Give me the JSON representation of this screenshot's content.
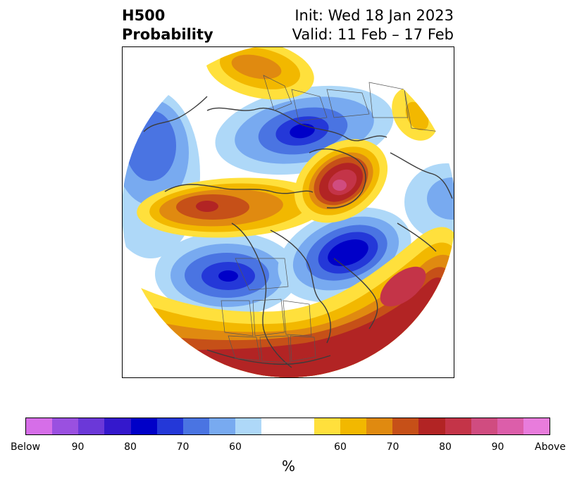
{
  "header": {
    "title_line1": "H500",
    "title_line2": "Probability",
    "init_text": "Init: Wed 18 Jan 2023",
    "valid_text": "Valid: 11 Feb – 17 Feb"
  },
  "map": {
    "projection": "north-polar-stereographic",
    "features": [
      "coastlines",
      "country-borders",
      "us-state-borders"
    ],
    "anomalies": [
      {
        "id": "west-canada-low",
        "sign": "below",
        "peak_pct": 80
      },
      {
        "id": "greenland-low",
        "sign": "below",
        "peak_pct": 80
      },
      {
        "id": "siberia-low",
        "sign": "below",
        "peak_pct": 80
      },
      {
        "id": "north-atlantic-high",
        "sign": "above",
        "peak_pct": 90
      },
      {
        "id": "eastern-us-high",
        "sign": "above",
        "peak_pct": 80
      },
      {
        "id": "arctic-high",
        "sign": "above",
        "peak_pct": 90
      },
      {
        "id": "bering-high",
        "sign": "above",
        "peak_pct": 80
      },
      {
        "id": "europe-high",
        "sign": "above",
        "peak_pct": 70
      }
    ]
  },
  "colorbar": {
    "colors": [
      "#d66ee8",
      "#9a50e0",
      "#6b38d8",
      "#3418cc",
      "#0000c8",
      "#2438d8",
      "#4a74e2",
      "#78aaf0",
      "#aed8f8",
      "#ffffff",
      "#ffffff",
      "#ffe03c",
      "#f2b800",
      "#e08a10",
      "#c65018",
      "#b22424",
      "#c43448",
      "#d04c80",
      "#dc5eaa",
      "#e87cdc"
    ],
    "ticks": [
      "Below",
      "90",
      "80",
      "70",
      "60",
      "60",
      "70",
      "80",
      "90",
      "Above"
    ],
    "unit": "%"
  }
}
